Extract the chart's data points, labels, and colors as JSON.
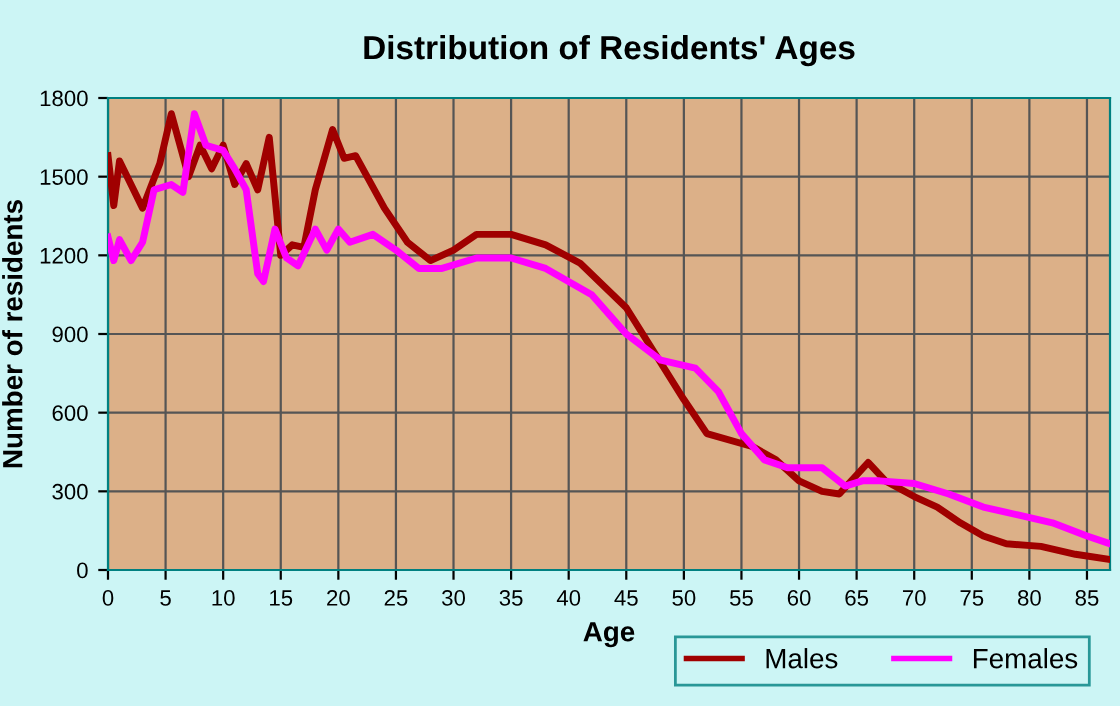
{
  "chart_data": {
    "type": "line",
    "title": "Distribution of Residents' Ages",
    "xlabel": "Age",
    "ylabel": "Number of residents",
    "xlim": [
      0,
      87
    ],
    "xticks": [
      0,
      5,
      10,
      15,
      20,
      25,
      30,
      35,
      40,
      45,
      50,
      55,
      60,
      65,
      70,
      75,
      80,
      85
    ],
    "ylim": [
      0,
      1800
    ],
    "yticks": [
      0,
      300,
      600,
      900,
      1200,
      1500,
      1800
    ],
    "grid": true,
    "legend": "bottom right",
    "marker": "none",
    "line_style": "solid",
    "series": [
      {
        "name": "Males",
        "color": "#a00000",
        "x": [
          0,
          0.5,
          1,
          3,
          4.5,
          5.5,
          7,
          8,
          9,
          10,
          11,
          12,
          13,
          14,
          15,
          16,
          17,
          18,
          19.5,
          20.5,
          21.5,
          24,
          26,
          28,
          30,
          32,
          35,
          38,
          41,
          45,
          50,
          52,
          56,
          58,
          60,
          62,
          63.5,
          66,
          67.5,
          70,
          72,
          74,
          76,
          78,
          81,
          84,
          87
        ],
        "values": [
          1580,
          1390,
          1560,
          1380,
          1550,
          1740,
          1500,
          1620,
          1530,
          1620,
          1470,
          1550,
          1450,
          1650,
          1200,
          1240,
          1230,
          1450,
          1680,
          1570,
          1580,
          1380,
          1250,
          1180,
          1220,
          1280,
          1280,
          1240,
          1170,
          1000,
          650,
          520,
          470,
          420,
          340,
          300,
          290,
          410,
          340,
          280,
          240,
          180,
          130,
          100,
          90,
          60,
          40
        ]
      },
      {
        "name": "Females",
        "color": "#ff00ff",
        "x": [
          0,
          0.5,
          1,
          2,
          3,
          4,
          5.5,
          6.5,
          7.5,
          8.5,
          10,
          11,
          12,
          13,
          13.5,
          14.5,
          15.5,
          16.5,
          18,
          19,
          20,
          21,
          23,
          25,
          27,
          29,
          32,
          35,
          38,
          42,
          45,
          48,
          51,
          53,
          55,
          57,
          59,
          62,
          64,
          65.5,
          67,
          70,
          73,
          76,
          79,
          82,
          85,
          87
        ],
        "values": [
          1270,
          1180,
          1260,
          1180,
          1250,
          1450,
          1470,
          1440,
          1740,
          1620,
          1600,
          1530,
          1450,
          1130,
          1100,
          1300,
          1190,
          1160,
          1300,
          1220,
          1300,
          1250,
          1280,
          1220,
          1150,
          1150,
          1190,
          1190,
          1150,
          1050,
          900,
          800,
          770,
          680,
          520,
          420,
          390,
          390,
          320,
          340,
          340,
          330,
          290,
          240,
          210,
          180,
          130,
          100
        ]
      }
    ]
  }
}
